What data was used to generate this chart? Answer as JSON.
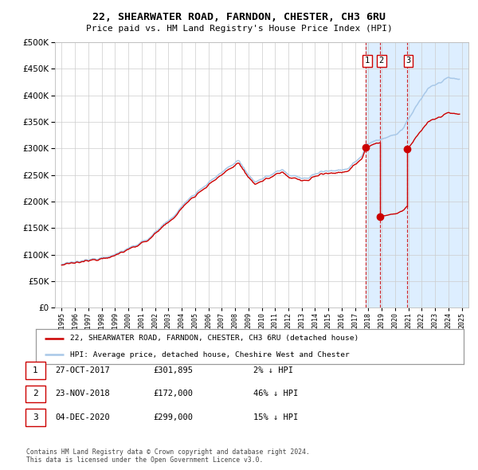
{
  "title": "22, SHEARWATER ROAD, FARNDON, CHESTER, CH3 6RU",
  "subtitle": "Price paid vs. HM Land Registry's House Price Index (HPI)",
  "legend_line1": "22, SHEARWATER ROAD, FARNDON, CHESTER, CH3 6RU (detached house)",
  "legend_line2": "HPI: Average price, detached house, Cheshire West and Chester",
  "footer1": "Contains HM Land Registry data © Crown copyright and database right 2024.",
  "footer2": "This data is licensed under the Open Government Licence v3.0.",
  "transactions": [
    {
      "label": "1",
      "date": "27-OCT-2017",
      "price": 301895,
      "price_str": "£301,895",
      "pct": "2% ↓ HPI"
    },
    {
      "label": "2",
      "date": "23-NOV-2018",
      "price": 172000,
      "price_str": "£172,000",
      "pct": "46% ↓ HPI"
    },
    {
      "label": "3",
      "date": "04-DEC-2020",
      "price": 299000,
      "price_str": "£299,000",
      "pct": "15% ↓ HPI"
    }
  ],
  "t_dates": [
    2017.822,
    2018.897,
    2020.922
  ],
  "t_prices": [
    301895,
    172000,
    299000
  ],
  "hpi_color": "#a8c8e8",
  "price_color": "#cc0000",
  "vline_color": "#cc0000",
  "highlight_bg": "#ddeeff",
  "grid_color": "#cccccc",
  "ylim": [
    0,
    500000
  ],
  "xlim": [
    1994.5,
    2025.5
  ]
}
